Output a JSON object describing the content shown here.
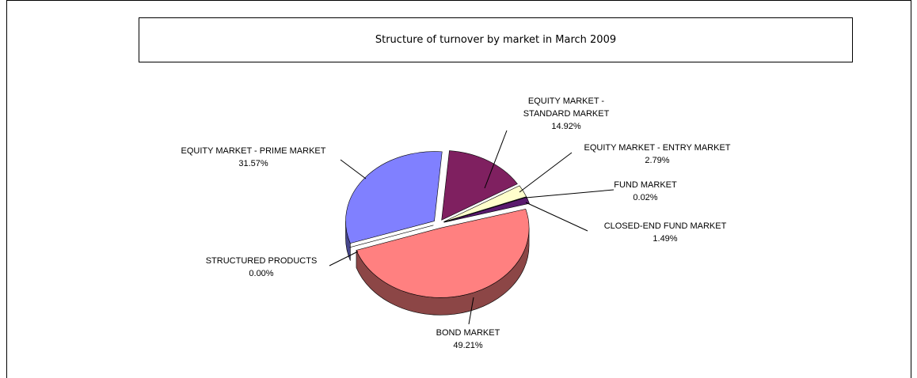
{
  "chart_data": {
    "type": "pie3d",
    "title": "Structure of turnover by market in March 2009",
    "categories": [
      "EQUITY MARKET - STANDARD MARKET",
      "EQUITY MARKET - ENTRY MARKET",
      "FUND MARKET",
      "CLOSED-END FUND MARKET",
      "BOND MARKET",
      "STRUCTURED PRODUCTS",
      "EQUITY MARKET - PRIME MARKET"
    ],
    "values": [
      14.92,
      2.79,
      0.02,
      1.49,
      49.21,
      0.0,
      31.57
    ],
    "value_labels": [
      "14.92%",
      "2.79%",
      "0.02%",
      "1.49%",
      "49.21%",
      "0.00%",
      "31.57%"
    ],
    "colors": [
      "#7f2060",
      "#ffffcc",
      "#ccffff",
      "#5a1a6e",
      "#ff8080",
      "#1e5a7a",
      "#8080ff"
    ]
  }
}
